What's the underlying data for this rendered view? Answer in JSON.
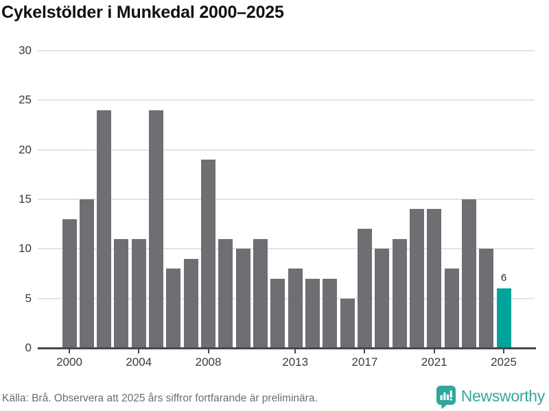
{
  "title": "Cykelstölder i Munkedal 2000–2025",
  "chart_data": {
    "type": "bar",
    "title": "Cykelstölder i Munkedal 2000–2025",
    "categories": [
      2000,
      2001,
      2002,
      2003,
      2004,
      2005,
      2006,
      2007,
      2008,
      2009,
      2010,
      2011,
      2012,
      2013,
      2014,
      2015,
      2016,
      2017,
      2018,
      2019,
      2020,
      2021,
      2022,
      2023,
      2024,
      2025
    ],
    "values": [
      13,
      15,
      24,
      11,
      11,
      24,
      8,
      9,
      19,
      11,
      10,
      11,
      7,
      8,
      7,
      7,
      5,
      12,
      10,
      11,
      14,
      14,
      8,
      15,
      10,
      6
    ],
    "highlight_year": 2025,
    "highlight_value_label": "6",
    "x_tick_labels": [
      "2000",
      "2004",
      "2008",
      "2013",
      "2017",
      "2021",
      "2025"
    ],
    "y_tick_labels": [
      "0",
      "5",
      "10",
      "15",
      "20",
      "25",
      "30"
    ],
    "ylim": [
      0,
      30
    ],
    "grid": true,
    "legend_position": "none",
    "xlabel": "",
    "ylabel": ""
  },
  "colors": {
    "bar": "#6E6E73",
    "highlight": "#00A49B",
    "gridline": "#E4E4E6",
    "axis": "#47474C",
    "tick_label": "#38393D",
    "title": "#111111",
    "footer_text": "#686C74",
    "logo": "#37A69D"
  },
  "footer": {
    "source_note": "Källa: Brå. Observera att 2025 års siffror fortfarande är preliminära."
  },
  "branding": {
    "wordmark": "Newsworthy",
    "icon": "bar-chart-speech-bubble-icon"
  }
}
